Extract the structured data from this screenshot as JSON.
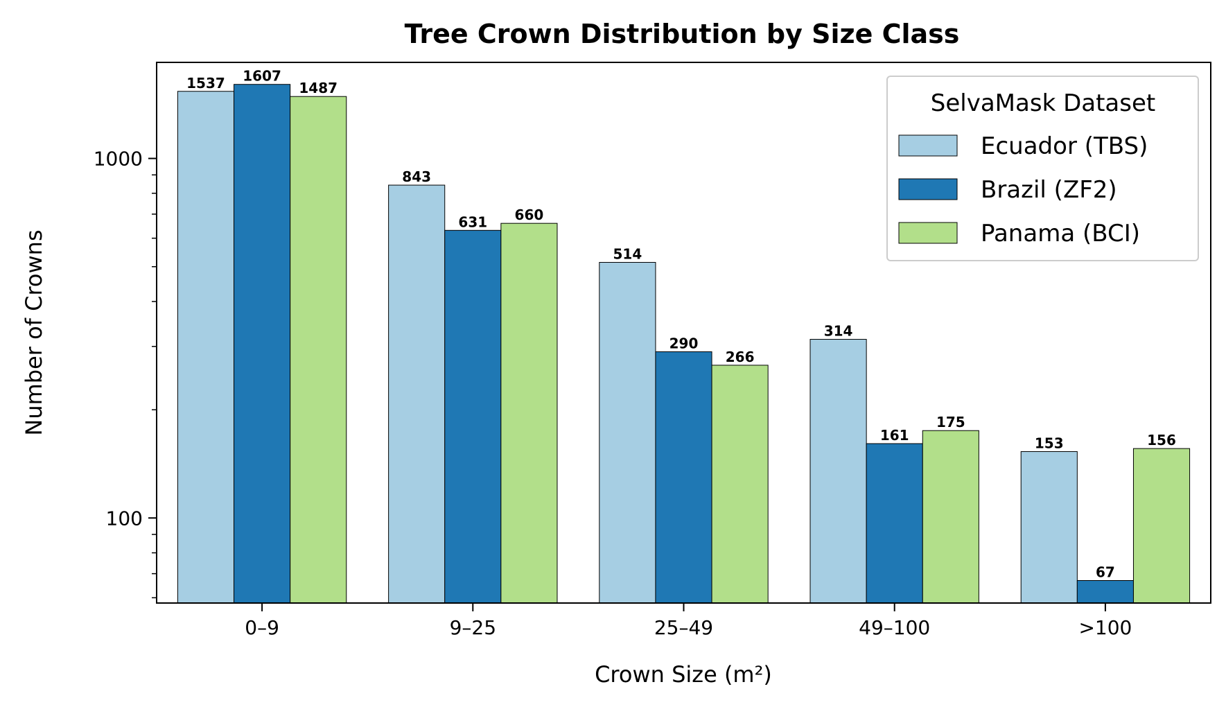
{
  "chart_data": {
    "type": "bar",
    "title": "Tree Crown Distribution by Size Class",
    "xlabel": "Crown Size (m²)",
    "ylabel": "Number of Crowns",
    "yscale": "log",
    "ylim": [
      58,
      1850
    ],
    "yticks": [
      100,
      1000
    ],
    "ytick_labels": [
      "100",
      "1000"
    ],
    "categories": [
      "0–9",
      "9–25",
      "25–49",
      "49–100",
      ">100"
    ],
    "series": [
      {
        "name": "Ecuador (TBS)",
        "color": "#a6cee3",
        "values": [
          1537,
          843,
          514,
          314,
          153
        ]
      },
      {
        "name": "Brazil (ZF2)",
        "color": "#1f78b4",
        "values": [
          1607,
          631,
          290,
          161,
          67
        ]
      },
      {
        "name": "Panama (BCI)",
        "color": "#b2df8a",
        "values": [
          1487,
          660,
          266,
          175,
          156
        ]
      }
    ],
    "legend": {
      "title": "SelvaMask Dataset",
      "position": "top-right"
    },
    "grid": false
  }
}
